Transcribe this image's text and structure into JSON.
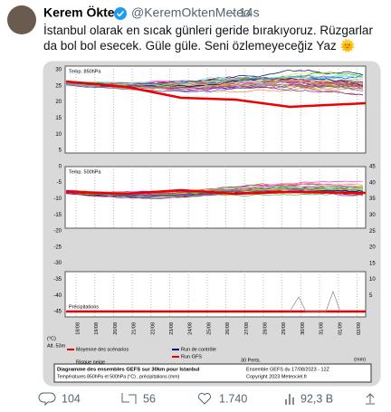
{
  "tweet": {
    "author": "Kerem Ökten",
    "handle": "@KeremOktenMeteo",
    "separator": "·",
    "time": "14s",
    "text": "İstanbul olarak en sıcak günleri geride bırakıyoruz. Rüzgarlar da bol bol esecek. Güle güle. Seni özlemeyeceğiz Yaz 🌞"
  },
  "image": {
    "panel_labels": [
      "Temp. 850hPa",
      "Temp. 500hPa",
      "Précipitations"
    ],
    "left_labels": [
      "30",
      "25",
      "20",
      "15",
      "10",
      "5",
      "0",
      "-5",
      "-10",
      "-15",
      "-20",
      "-25",
      "-30",
      "-35",
      "-40",
      "-45"
    ],
    "right_labels": [
      "45",
      "40",
      "35",
      "30",
      "25",
      "20",
      "15",
      "10",
      "5"
    ],
    "dates": [
      "18/08",
      "19/08",
      "20/08",
      "21/08",
      "22/08",
      "23/08",
      "24/08",
      "25/08",
      "26/08",
      "27/08",
      "28/08",
      "29/08",
      "30/08",
      "31/08",
      "01/09",
      "02/09"
    ],
    "unit_c": "(°C)",
    "unit_mm": "(mm)",
    "altitude": "Alt. 53m",
    "snow": "Risque neige",
    "legend": [
      "Moyenne des scénarios",
      "Run de contrôle",
      "Run GFS",
      "30 Perts."
    ],
    "footer_title": "Diagramme des ensembles GEFS sur 30km pour Istanbul",
    "footer_sub": "Températures 850hPa et 500hPa (°C) , précipitations (mm)",
    "run": "Ensemble GEFS du 17/08/2023 - 12Z",
    "copyright": "Copyright 2023 Meteociel.fr"
  },
  "actions": {
    "replies": "104",
    "retweets": "56",
    "likes": "1.740",
    "views": "92,3 B"
  }
}
